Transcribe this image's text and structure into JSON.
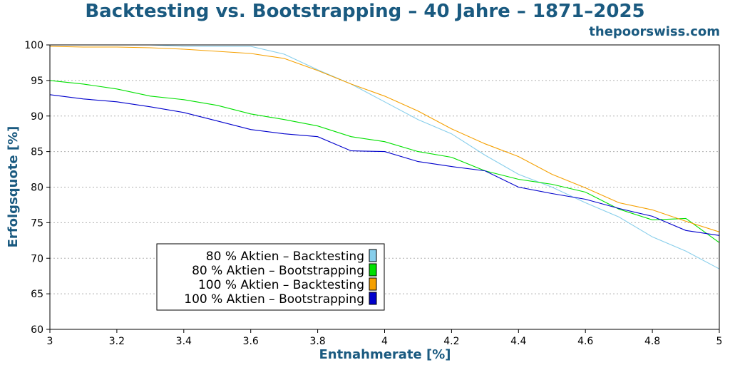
{
  "header": {
    "title": "Backtesting vs. Bootstrapping – 40 Jahre – 1871–2025",
    "brand": "thepoorswiss.com"
  },
  "colors": {
    "title": "#1a5a80",
    "s1": "#87ceeb",
    "s2": "#00e000",
    "s3": "#f5a000",
    "s4": "#0000cc",
    "grid": "#b0b0b0"
  },
  "chart_data": {
    "type": "line",
    "xlabel": "Entnahmerate [%]",
    "ylabel": "Erfolgsquote [%]",
    "xlim": [
      3,
      5
    ],
    "ylim": [
      60,
      100
    ],
    "xticks": [
      3,
      3.2,
      3.4,
      3.6,
      3.8,
      4,
      4.2,
      4.4,
      4.6,
      4.8,
      5
    ],
    "yticks": [
      60,
      65,
      70,
      75,
      80,
      85,
      90,
      95,
      100
    ],
    "grid": "horizontal dotted",
    "legend_position": "lower-left",
    "series": [
      {
        "name": "80 % Aktien – Backtesting",
        "color": "#87ceeb",
        "x": [
          3.0,
          3.1,
          3.2,
          3.3,
          3.4,
          3.5,
          3.6,
          3.7,
          3.8,
          3.9,
          4.0,
          4.1,
          4.2,
          4.3,
          4.4,
          4.5,
          4.6,
          4.7,
          4.8,
          4.9,
          5.0
        ],
        "y": [
          100,
          100,
          100,
          100,
          99.8,
          99.8,
          99.8,
          98.7,
          96.5,
          94.5,
          92.0,
          89.5,
          87.5,
          84.5,
          81.8,
          80.0,
          77.8,
          75.8,
          73.0,
          71.0,
          68.5
        ]
      },
      {
        "name": "80 % Aktien – Bootstrapping",
        "color": "#00e000",
        "x": [
          3.0,
          3.1,
          3.2,
          3.3,
          3.4,
          3.5,
          3.6,
          3.7,
          3.8,
          3.9,
          4.0,
          4.1,
          4.2,
          4.3,
          4.4,
          4.5,
          4.6,
          4.7,
          4.8,
          4.9,
          5.0
        ],
        "y": [
          95.0,
          94.5,
          93.8,
          92.8,
          92.3,
          91.5,
          90.3,
          89.5,
          88.6,
          87.1,
          86.4,
          85.0,
          84.2,
          82.3,
          81.1,
          80.4,
          79.3,
          76.9,
          75.4,
          75.6,
          72.2
        ]
      },
      {
        "name": "100 % Aktien – Backtesting",
        "color": "#f5a000",
        "x": [
          3.0,
          3.1,
          3.2,
          3.3,
          3.4,
          3.5,
          3.6,
          3.7,
          3.8,
          3.9,
          4.0,
          4.1,
          4.2,
          4.3,
          4.4,
          4.5,
          4.6,
          4.7,
          4.8,
          4.9,
          5.0
        ],
        "y": [
          99.8,
          99.7,
          99.7,
          99.6,
          99.4,
          99.1,
          98.8,
          98.1,
          96.4,
          94.5,
          92.8,
          90.7,
          88.2,
          86.1,
          84.3,
          81.8,
          79.9,
          77.8,
          76.8,
          75.2,
          73.7
        ]
      },
      {
        "name": "100 % Aktien – Bootstrapping",
        "color": "#0000cc",
        "x": [
          3.0,
          3.1,
          3.2,
          3.3,
          3.4,
          3.5,
          3.6,
          3.7,
          3.8,
          3.9,
          4.0,
          4.1,
          4.2,
          4.3,
          4.4,
          4.5,
          4.6,
          4.7,
          4.8,
          4.9,
          5.0
        ],
        "y": [
          93.0,
          92.4,
          92.0,
          91.3,
          90.5,
          89.3,
          88.1,
          87.5,
          87.1,
          85.1,
          85.0,
          83.6,
          82.9,
          82.3,
          80.0,
          79.1,
          78.3,
          77.0,
          75.9,
          73.9,
          73.2
        ]
      }
    ]
  }
}
